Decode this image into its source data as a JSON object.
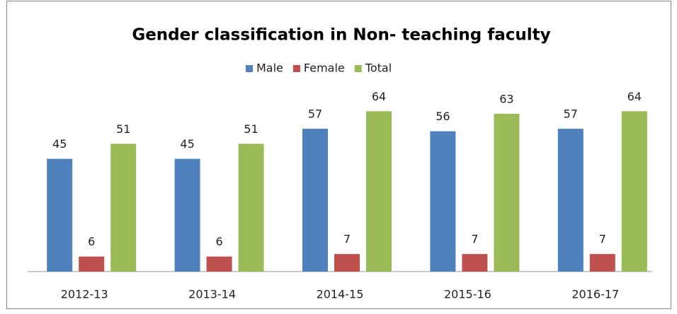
{
  "chart_data": {
    "type": "bar",
    "title": "Gender classification in Non- teaching faculty",
    "categories": [
      "2012-13",
      "2013-14",
      "2014-15",
      "2015-16",
      "2016-17"
    ],
    "series": [
      {
        "name": "Male",
        "color": "#4f81bd",
        "values": [
          45,
          45,
          57,
          56,
          57
        ]
      },
      {
        "name": "Female",
        "color": "#c0504d",
        "values": [
          6,
          6,
          7,
          7,
          7
        ]
      },
      {
        "name": "Total",
        "color": "#9bbb59",
        "values": [
          51,
          51,
          64,
          63,
          64
        ]
      }
    ],
    "ylim": [
      0,
      70
    ],
    "legend": "top"
  }
}
